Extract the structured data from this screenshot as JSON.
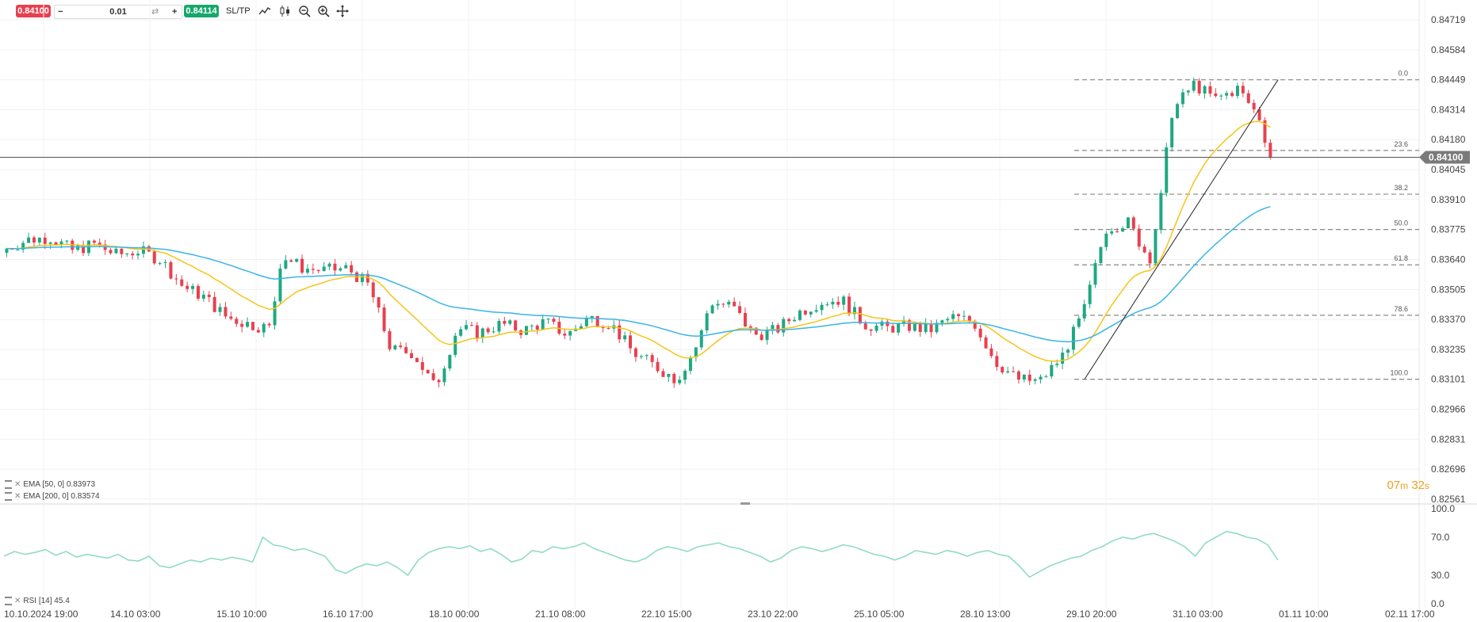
{
  "toolbar": {
    "sell_price": "0.84100",
    "buy_price": "0.84114",
    "quantity": "0.01",
    "minus": "−",
    "plus": "+",
    "sltp_label": "SL/TP",
    "tools": [
      "line-chart-icon",
      "candles-icon",
      "zoom-out-icon",
      "zoom-in-icon",
      "crosshair-icon"
    ]
  },
  "legend": {
    "ema50": "EMA [50, 0] 0.83973",
    "ema200": "EMA [200, 0] 0.83574",
    "rsi": "RSI [14] 45.4"
  },
  "countdown": {
    "minutes": "07",
    "m_unit": "m",
    "seconds": "32",
    "s_unit": "s"
  },
  "colors": {
    "up": "#1fa882",
    "down": "#e8404f",
    "ema50": "#f5c518",
    "ema200": "#3ab4e6",
    "rsi": "#8fdcc4",
    "price_tag": "#7a7a7a"
  },
  "chart_data": [
    {
      "type": "candlestick",
      "y_ticks": [
        "0.84719",
        "0.84584",
        "0.84449",
        "0.84314",
        "0.84180",
        "0.84045",
        "0.83910",
        "0.83775",
        "0.83640",
        "0.83505",
        "0.83370",
        "0.83235",
        "0.83101",
        "0.82966",
        "0.82831",
        "0.82696",
        "0.82561"
      ],
      "ylim": [
        0.82561,
        0.84719
      ],
      "x_ticks": [
        "10.10.2024 19:00",
        "14.10 03:00",
        "15.10 10:00",
        "16.10 17:00",
        "18.10 00:00",
        "21.10 08:00",
        "22.10 15:00",
        "23.10 22:00",
        "25.10 05:00",
        "28.10 13:00",
        "29.10 20:00",
        "31.10 03:00",
        "01.11 10:00",
        "02.11 17:00"
      ],
      "current_price": "0.84100",
      "ohlc_profile": [
        {
          "t": 0,
          "o": 0.8367,
          "c": 0.8369,
          "h": 0.8372,
          "l": 0.8364
        },
        {
          "t": 2,
          "o": 0.8369,
          "c": 0.8373,
          "h": 0.8376,
          "l": 0.8367
        },
        {
          "t": 4,
          "o": 0.8373,
          "c": 0.8374,
          "h": 0.8383,
          "l": 0.8368
        },
        {
          "t": 6,
          "o": 0.8374,
          "c": 0.8368,
          "h": 0.8377,
          "l": 0.8364
        },
        {
          "t": 8,
          "o": 0.8368,
          "c": 0.8371,
          "h": 0.8375,
          "l": 0.8356
        },
        {
          "t": 10,
          "o": 0.8371,
          "c": 0.8366,
          "h": 0.8374,
          "l": 0.836
        },
        {
          "t": 12,
          "o": 0.8366,
          "c": 0.8368,
          "h": 0.8372,
          "l": 0.8362
        },
        {
          "t": 14,
          "o": 0.8368,
          "c": 0.8364,
          "h": 0.8372,
          "l": 0.8358
        },
        {
          "t": 16,
          "o": 0.8364,
          "c": 0.8352,
          "h": 0.8366,
          "l": 0.8349
        },
        {
          "t": 18,
          "o": 0.8352,
          "c": 0.8347,
          "h": 0.8355,
          "l": 0.8344
        },
        {
          "t": 20,
          "o": 0.8347,
          "c": 0.8338,
          "h": 0.8349,
          "l": 0.8332
        },
        {
          "t": 22,
          "o": 0.8338,
          "c": 0.8335,
          "h": 0.834,
          "l": 0.8327
        },
        {
          "t": 24,
          "o": 0.8335,
          "c": 0.8333,
          "h": 0.8337,
          "l": 0.8329
        },
        {
          "t": 25,
          "o": 0.8333,
          "c": 0.8366,
          "h": 0.8381,
          "l": 0.833
        },
        {
          "t": 27,
          "o": 0.8366,
          "c": 0.836,
          "h": 0.837,
          "l": 0.8356
        },
        {
          "t": 29,
          "o": 0.836,
          "c": 0.8359,
          "h": 0.8364,
          "l": 0.8355
        },
        {
          "t": 31,
          "o": 0.8359,
          "c": 0.836,
          "h": 0.8366,
          "l": 0.8356
        },
        {
          "t": 33,
          "o": 0.836,
          "c": 0.8352,
          "h": 0.8363,
          "l": 0.8345
        },
        {
          "t": 35,
          "o": 0.8352,
          "c": 0.8323,
          "h": 0.8354,
          "l": 0.832
        },
        {
          "t": 37,
          "o": 0.8323,
          "c": 0.8322,
          "h": 0.8326,
          "l": 0.8318
        },
        {
          "t": 39,
          "o": 0.8322,
          "c": 0.8306,
          "h": 0.8324,
          "l": 0.8294
        },
        {
          "t": 41,
          "o": 0.8306,
          "c": 0.8333,
          "h": 0.8336,
          "l": 0.8303
        },
        {
          "t": 43,
          "o": 0.8333,
          "c": 0.8331,
          "h": 0.8336,
          "l": 0.8326
        },
        {
          "t": 45,
          "o": 0.8331,
          "c": 0.8335,
          "h": 0.8339,
          "l": 0.8327
        },
        {
          "t": 47,
          "o": 0.8335,
          "c": 0.8332,
          "h": 0.834,
          "l": 0.8325
        },
        {
          "t": 49,
          "o": 0.8332,
          "c": 0.8336,
          "h": 0.8341,
          "l": 0.8329
        },
        {
          "t": 51,
          "o": 0.8336,
          "c": 0.833,
          "h": 0.8339,
          "l": 0.8322
        },
        {
          "t": 53,
          "o": 0.833,
          "c": 0.8338,
          "h": 0.8345,
          "l": 0.8327
        },
        {
          "t": 55,
          "o": 0.8338,
          "c": 0.8335,
          "h": 0.8346,
          "l": 0.8332
        },
        {
          "t": 57,
          "o": 0.8335,
          "c": 0.8322,
          "h": 0.8338,
          "l": 0.8319
        },
        {
          "t": 59,
          "o": 0.8322,
          "c": 0.8316,
          "h": 0.8325,
          "l": 0.831
        },
        {
          "t": 61,
          "o": 0.8316,
          "c": 0.831,
          "h": 0.8322,
          "l": 0.8302
        },
        {
          "t": 63,
          "o": 0.831,
          "c": 0.8327,
          "h": 0.8331,
          "l": 0.8305
        },
        {
          "t": 64,
          "o": 0.8327,
          "c": 0.8345,
          "h": 0.8351,
          "l": 0.8325
        },
        {
          "t": 66,
          "o": 0.8345,
          "c": 0.8343,
          "h": 0.8349,
          "l": 0.8339
        },
        {
          "t": 68,
          "o": 0.8343,
          "c": 0.833,
          "h": 0.8346,
          "l": 0.8316
        },
        {
          "t": 70,
          "o": 0.833,
          "c": 0.8332,
          "h": 0.8342,
          "l": 0.8325
        },
        {
          "t": 72,
          "o": 0.8332,
          "c": 0.834,
          "h": 0.8345,
          "l": 0.8328
        },
        {
          "t": 74,
          "o": 0.834,
          "c": 0.8345,
          "h": 0.8348,
          "l": 0.8337
        },
        {
          "t": 76,
          "o": 0.8345,
          "c": 0.8346,
          "h": 0.835,
          "l": 0.8341
        },
        {
          "t": 78,
          "o": 0.8346,
          "c": 0.8335,
          "h": 0.8348,
          "l": 0.833
        },
        {
          "t": 80,
          "o": 0.8335,
          "c": 0.8333,
          "h": 0.8338,
          "l": 0.8323
        },
        {
          "t": 82,
          "o": 0.8333,
          "c": 0.8334,
          "h": 0.8337,
          "l": 0.8329
        },
        {
          "t": 84,
          "o": 0.8334,
          "c": 0.8332,
          "h": 0.8338,
          "l": 0.8327
        },
        {
          "t": 86,
          "o": 0.8332,
          "c": 0.8338,
          "h": 0.8341,
          "l": 0.8327
        },
        {
          "t": 88,
          "o": 0.8338,
          "c": 0.8336,
          "h": 0.834,
          "l": 0.8332
        },
        {
          "t": 90,
          "o": 0.8336,
          "c": 0.8318,
          "h": 0.8338,
          "l": 0.8306
        },
        {
          "t": 92,
          "o": 0.8318,
          "c": 0.831,
          "h": 0.832,
          "l": 0.8298
        },
        {
          "t": 94,
          "o": 0.831,
          "c": 0.8309,
          "h": 0.8314,
          "l": 0.8304
        },
        {
          "t": 96,
          "o": 0.8309,
          "c": 0.832,
          "h": 0.8326,
          "l": 0.8306
        },
        {
          "t": 98,
          "o": 0.832,
          "c": 0.834,
          "h": 0.8345,
          "l": 0.8318
        },
        {
          "t": 100,
          "o": 0.834,
          "c": 0.8378,
          "h": 0.838,
          "l": 0.8318
        },
        {
          "t": 102,
          "o": 0.8378,
          "c": 0.8381,
          "h": 0.8383,
          "l": 0.8372
        },
        {
          "t": 104,
          "o": 0.8381,
          "c": 0.8364,
          "h": 0.8383,
          "l": 0.8357
        },
        {
          "t": 105,
          "o": 0.8364,
          "c": 0.839,
          "h": 0.8393,
          "l": 0.8362
        },
        {
          "t": 106,
          "o": 0.839,
          "c": 0.843,
          "h": 0.8442,
          "l": 0.8388
        },
        {
          "t": 108,
          "o": 0.843,
          "c": 0.8443,
          "h": 0.8448,
          "l": 0.8425
        },
        {
          "t": 110,
          "o": 0.8443,
          "c": 0.8436,
          "h": 0.8446,
          "l": 0.843
        },
        {
          "t": 112,
          "o": 0.8436,
          "c": 0.8441,
          "h": 0.8445,
          "l": 0.8433
        },
        {
          "t": 114,
          "o": 0.8441,
          "c": 0.8428,
          "h": 0.8443,
          "l": 0.842
        },
        {
          "t": 115,
          "o": 0.8428,
          "c": 0.841,
          "h": 0.843,
          "l": 0.8404
        }
      ]
    },
    {
      "type": "line",
      "name": "RSI [14] 45.4",
      "y_ticks": [
        "100.0",
        "70.0",
        "30.0",
        "0.0"
      ],
      "ylim": [
        0,
        100
      ],
      "values": [
        50,
        55,
        52,
        54,
        57,
        51,
        55,
        49,
        52,
        50,
        48,
        52,
        46,
        45,
        50,
        40,
        38,
        42,
        46,
        44,
        48,
        46,
        49,
        47,
        44,
        70,
        62,
        60,
        56,
        58,
        54,
        50,
        36,
        32,
        38,
        42,
        40,
        44,
        38,
        30,
        46,
        54,
        58,
        60,
        58,
        61,
        55,
        58,
        52,
        44,
        47,
        56,
        54,
        60,
        58,
        60,
        64,
        58,
        54,
        50,
        46,
        44,
        48,
        56,
        60,
        58,
        55,
        60,
        62,
        64,
        60,
        58,
        54,
        50,
        44,
        48,
        56,
        60,
        58,
        55,
        58,
        62,
        60,
        56,
        52,
        50,
        46,
        50,
        56,
        54,
        52,
        56,
        54,
        50,
        54,
        56,
        52,
        50,
        40,
        28,
        34,
        40,
        44,
        48,
        50,
        56,
        60,
        66,
        70,
        68,
        72,
        74,
        70,
        66,
        60,
        50,
        64,
        70,
        76,
        74,
        70,
        68,
        62,
        46
      ]
    }
  ],
  "fib_levels": [
    {
      "label": "0.0",
      "price": 0.84449
    },
    {
      "label": "23.6",
      "price": 0.84131
    },
    {
      "label": "38.2",
      "price": 0.83934
    },
    {
      "label": "50.0",
      "price": 0.83775
    },
    {
      "label": "61.8",
      "price": 0.83616
    },
    {
      "label": "78.6",
      "price": 0.83389
    },
    {
      "label": "100.0",
      "price": 0.83101
    }
  ]
}
